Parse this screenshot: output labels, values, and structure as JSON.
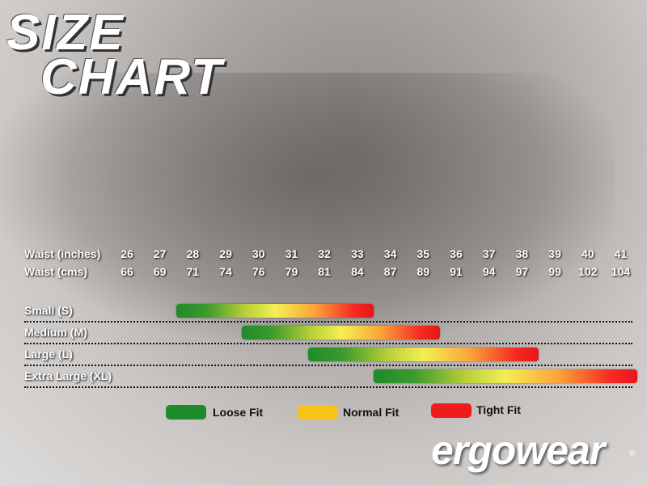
{
  "title": {
    "line1": "SIZE",
    "line2": "CHART"
  },
  "chart_data": {
    "type": "range-bar",
    "row_labels": {
      "inches": "Waist (inches)",
      "cms": "Waist (cms)"
    },
    "waist_inches": [
      26,
      27,
      28,
      29,
      30,
      31,
      32,
      33,
      34,
      35,
      36,
      37,
      38,
      39,
      40,
      41
    ],
    "waist_cms": [
      66,
      69,
      71,
      74,
      76,
      79,
      81,
      84,
      87,
      89,
      91,
      94,
      97,
      99,
      102,
      104
    ],
    "sizes": [
      {
        "label": "Small (S)",
        "from_inches": 27.5,
        "to_inches": 33.5
      },
      {
        "label": "Medium (M)",
        "from_inches": 29.5,
        "to_inches": 35.5
      },
      {
        "label": "Large (L)",
        "from_inches": 31.5,
        "to_inches": 38.5
      },
      {
        "label": "Extra Large (XL)",
        "from_inches": 33.5,
        "to_inches": 41.5
      }
    ],
    "legend": [
      {
        "label": "Loose Fit",
        "color": "#1f8a2b"
      },
      {
        "label": "Normal Fit",
        "color": "#f7c31a"
      },
      {
        "label": "Tight Fit",
        "color": "#ee1c1c"
      }
    ]
  },
  "logo": {
    "text": "ergowear",
    "registered": "®"
  }
}
